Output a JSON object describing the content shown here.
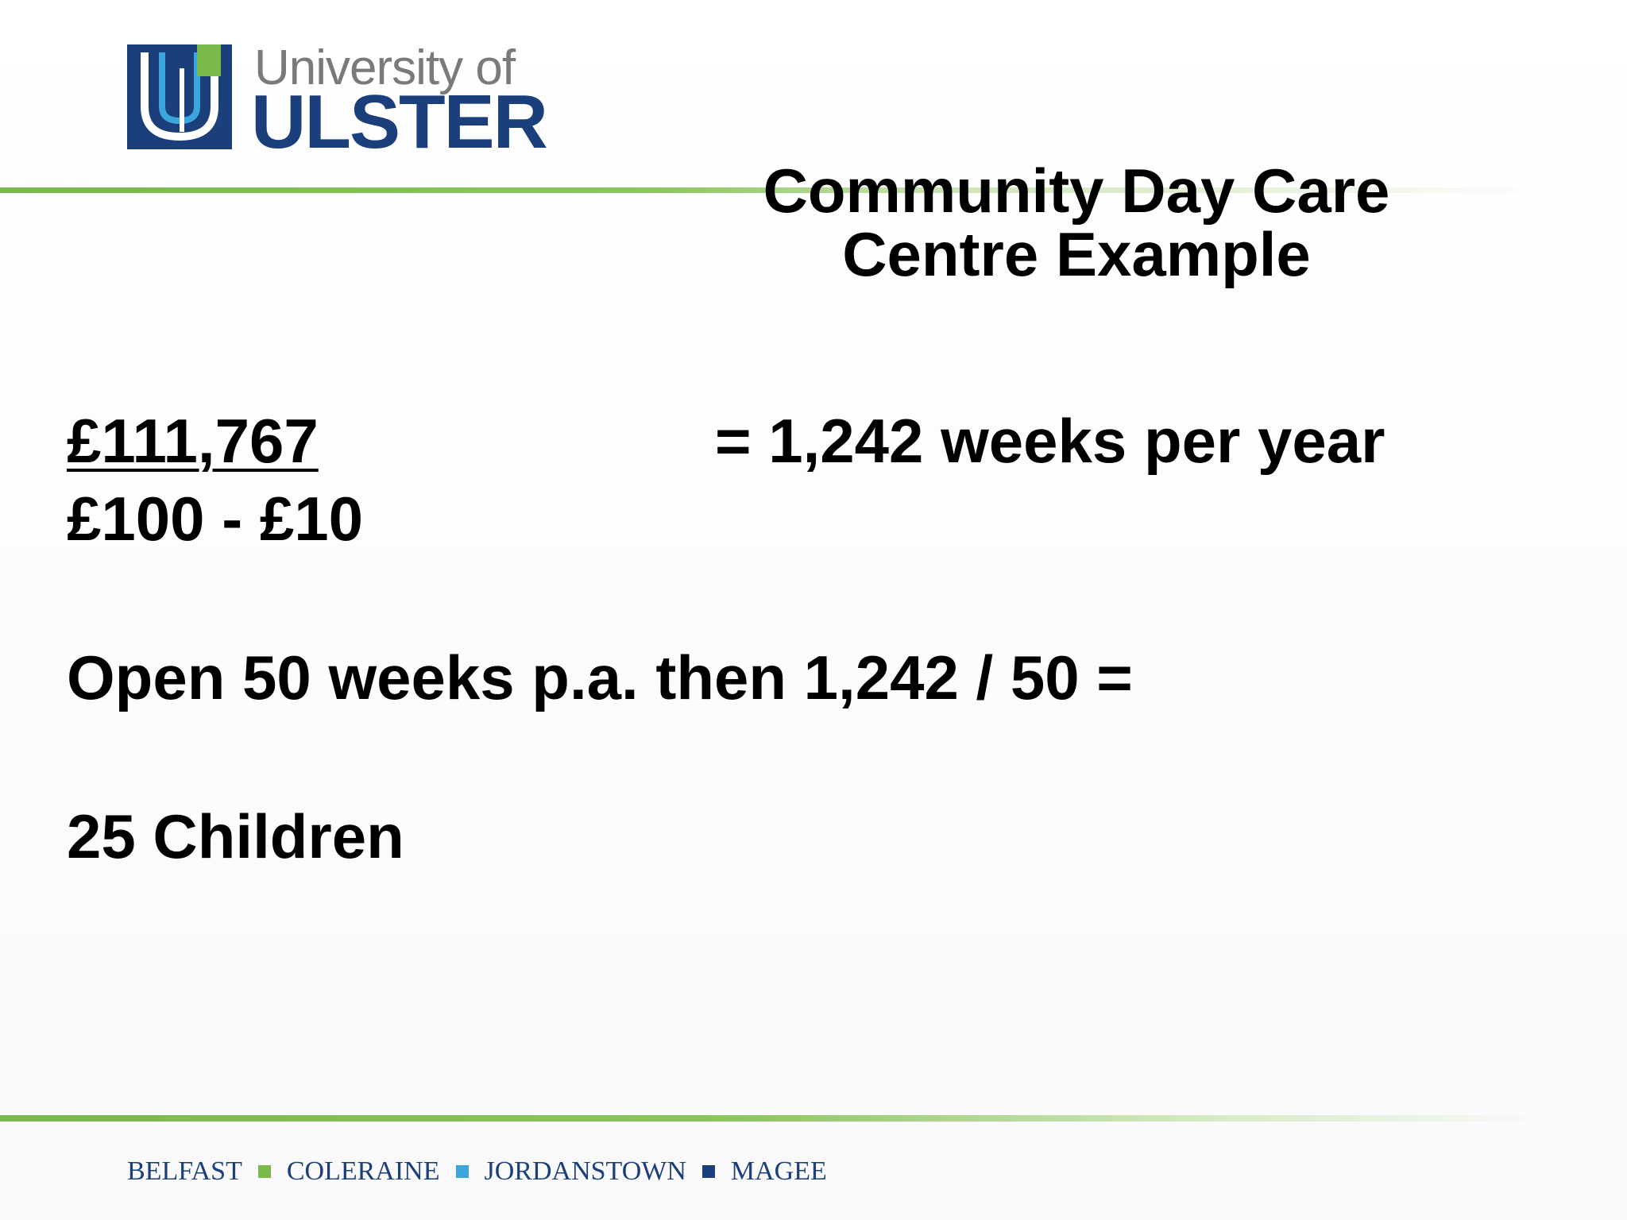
{
  "logo": {
    "line1": "University of",
    "line2": "ULSTER",
    "colors": {
      "blue": "#1b3f7a",
      "green": "#79b84a",
      "grey": "#7a7a7a"
    }
  },
  "title": {
    "line1": "Community Day Care",
    "line2": "Centre Example"
  },
  "calc": {
    "numerator": "£111,767",
    "denominator": "£100 - £10",
    "result": "= 1,242 weeks per year",
    "weeks_line": "Open 50 weeks p.a. then 1,242 / 50 =",
    "children_line": "25 Children"
  },
  "footer": {
    "campuses": [
      "BELFAST",
      "COLERAINE",
      "JORDANSTOWN",
      "MAGEE"
    ],
    "separator_colors": [
      "#79b84a",
      "#3aa6dd",
      "#1b3f7a"
    ]
  },
  "accent_color": "#79b84a"
}
